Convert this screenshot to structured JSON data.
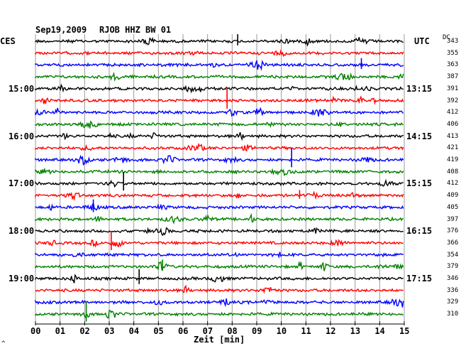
{
  "header": {
    "date": "Sep19,2009",
    "station": "RJOB HHZ BW 01",
    "left_zone": "CES",
    "right_zone": "UTC",
    "dc_label": "DC"
  },
  "left_times": [
    "15:00",
    "16:00",
    "17:00",
    "18:00",
    "19:00"
  ],
  "right_times": [
    "13:15",
    "14:15",
    "15:15",
    "16:15",
    "17:15"
  ],
  "dc_values": [
    "343",
    "355",
    "363",
    "387",
    "391",
    "392",
    "412",
    "406",
    "413",
    "421",
    "419",
    "408",
    "412",
    "409",
    "405",
    "397",
    "376",
    "366",
    "354",
    "379",
    "346",
    "336",
    "329",
    "310"
  ],
  "x_axis": {
    "label": "Zeit [min]",
    "ticks": [
      "00",
      "01",
      "02",
      "03",
      "04",
      "05",
      "06",
      "07",
      "08",
      "09",
      "10",
      "11",
      "12",
      "13",
      "14",
      "15"
    ]
  },
  "trace_colors": [
    "#000000",
    "#ff0000",
    "#0000ff",
    "#008000"
  ],
  "footer_mark": "^"
}
